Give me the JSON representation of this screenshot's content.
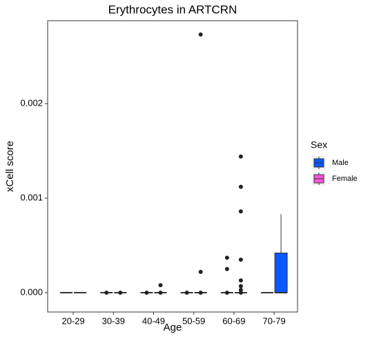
{
  "chart_data": {
    "type": "box",
    "title": "Erythrocytes in ARTCRN",
    "x_label": "Age",
    "y_label": "xCell score",
    "categories": [
      "20-29",
      "30-39",
      "40-49",
      "50-59",
      "60-69",
      "70-79"
    ],
    "ylim": [
      -0.000204,
      0.002876
    ],
    "yticks": [
      {
        "value": 0,
        "label": "0.000"
      },
      {
        "value": 0.001,
        "label": "0.001"
      },
      {
        "value": 0.002,
        "label": "0.002"
      }
    ],
    "legend_title": "Sex",
    "series": [
      {
        "name": "Male",
        "color": "#0a57ff",
        "boxes": [
          {
            "min": 0,
            "q1": 0,
            "median": 0,
            "q3": 0,
            "max": 0,
            "outliers": []
          },
          {
            "min": 0,
            "q1": 0,
            "median": 0,
            "q3": 0,
            "max": 0,
            "outliers": [
              0
            ]
          },
          {
            "min": 0,
            "q1": 0,
            "median": 0,
            "q3": 0,
            "max": 0,
            "outliers": [
              8e-05,
              0
            ]
          },
          {
            "min": 0,
            "q1": 0,
            "median": 0,
            "q3": 0,
            "max": 0,
            "outliers": [
              0.00273,
              0.00022,
              0
            ]
          },
          {
            "min": 0,
            "q1": 0,
            "median": 0,
            "q3": 0,
            "max": 0,
            "outliers": [
              0.00144,
              0.00112,
              0.00086,
              0.00035,
              0.00013,
              7e-05,
              3e-05,
              0
            ]
          },
          {
            "min": 0,
            "q1": 0,
            "median": 0,
            "q3": 0.00042,
            "max": 0.00083,
            "outliers": []
          }
        ]
      },
      {
        "name": "Female",
        "color": "#ff55dd",
        "boxes": [
          {
            "min": 0,
            "q1": 0,
            "median": 0,
            "q3": 0,
            "max": 0,
            "outliers": []
          },
          {
            "min": 0,
            "q1": 0,
            "median": 0,
            "q3": 0,
            "max": 0,
            "outliers": [
              0
            ]
          },
          {
            "min": 0,
            "q1": 0,
            "median": 0,
            "q3": 0,
            "max": 0,
            "outliers": [
              0
            ]
          },
          {
            "min": 0,
            "q1": 0,
            "median": 0,
            "q3": 0,
            "max": 0,
            "outliers": [
              0
            ]
          },
          {
            "min": 0,
            "q1": 0,
            "median": 0,
            "q3": 0,
            "max": 0,
            "outliers": [
              0.00037,
              0.00025,
              0
            ]
          },
          {
            "min": 0,
            "q1": 0,
            "median": 0,
            "q3": 0,
            "max": 0,
            "outliers": []
          }
        ]
      }
    ]
  }
}
